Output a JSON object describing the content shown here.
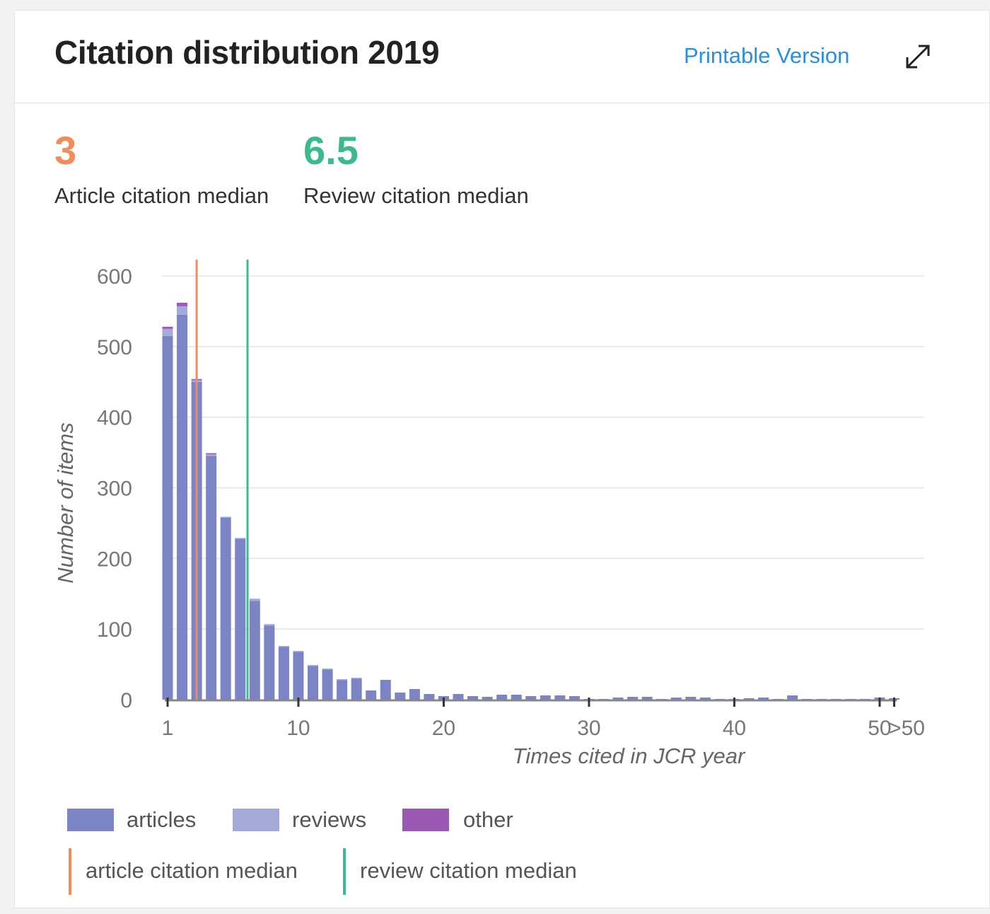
{
  "header": {
    "title": "Citation distribution 2019",
    "printable_label": "Printable Version"
  },
  "stats": [
    {
      "value": "3",
      "label": "Article citation median",
      "color": "#f28c5a"
    },
    {
      "value": "6.5",
      "label": "Review citation median",
      "color": "#3cba8c"
    }
  ],
  "legend": {
    "articles": "articles",
    "reviews": "reviews",
    "other": "other",
    "article_median": "article citation median",
    "review_median": "review citation median"
  },
  "colors": {
    "articles": "#7b84c4",
    "reviews": "#a4abd9",
    "other": "#9b59b6",
    "article_median": "#f28c5a",
    "review_median": "#3cba8c"
  },
  "chart_data": {
    "type": "bar",
    "title": "",
    "xlabel": "Times cited in JCR year",
    "ylabel": "Number of items",
    "ylim": [
      0,
      600
    ],
    "yticks": [
      0,
      100,
      200,
      300,
      400,
      500,
      600
    ],
    "xticks": [
      {
        "x": 1,
        "label": "1"
      },
      {
        "x": 10,
        "label": "10"
      },
      {
        "x": 20,
        "label": "20"
      },
      {
        "x": 30,
        "label": "30"
      },
      {
        "x": 40,
        "label": "40"
      },
      {
        "x": 50,
        "label": "50"
      },
      {
        "x": 51,
        "label": ">50"
      }
    ],
    "grid": true,
    "categories": [
      "1",
      "2",
      "3",
      "4",
      "5",
      "6",
      "7",
      "8",
      "9",
      "10",
      "11",
      "12",
      "13",
      "14",
      "15",
      "16",
      "17",
      "18",
      "19",
      "20",
      "21",
      "22",
      "23",
      "24",
      "25",
      "26",
      "27",
      "28",
      "29",
      "30",
      "31",
      "32",
      "33",
      "34",
      "35",
      "36",
      "37",
      "38",
      "39",
      "40",
      "41",
      "42",
      "43",
      "44",
      "45",
      "46",
      "47",
      "48",
      "49",
      "50",
      ">50"
    ],
    "series": [
      {
        "name": "articles",
        "values": [
          515,
          545,
          450,
          345,
          258,
          228,
          140,
          105,
          75,
          68,
          48,
          43,
          28,
          30,
          13,
          28,
          10,
          15,
          8,
          5,
          8,
          5,
          4,
          7,
          7,
          5,
          6,
          6,
          5,
          1,
          1,
          3,
          4,
          4,
          1,
          3,
          4,
          3,
          1,
          1,
          2,
          3,
          1,
          6,
          1,
          1,
          1,
          1,
          1,
          3,
          2
        ]
      },
      {
        "name": "reviews",
        "values": [
          10,
          12,
          3,
          3,
          1,
          1,
          3,
          2,
          1,
          1,
          1,
          1,
          1,
          1,
          0,
          0,
          0,
          0,
          0,
          0,
          0,
          0,
          0,
          0,
          0,
          0,
          0,
          0,
          0,
          0,
          0,
          0,
          0,
          0,
          0,
          0,
          0,
          0,
          0,
          0,
          0,
          0,
          0,
          0,
          0,
          0,
          0,
          0,
          0,
          0,
          0
        ]
      },
      {
        "name": "other",
        "values": [
          3,
          5,
          1,
          1,
          0,
          0,
          0,
          0,
          0,
          0,
          0,
          0,
          0,
          0,
          0,
          0,
          0,
          0,
          0,
          0,
          0,
          0,
          0,
          0,
          0,
          0,
          0,
          0,
          0,
          0,
          0,
          0,
          0,
          0,
          0,
          0,
          0,
          0,
          0,
          0,
          0,
          0,
          0,
          0,
          0,
          0,
          0,
          0,
          0,
          0,
          0
        ]
      }
    ],
    "article_median": 3,
    "review_median": 6.5,
    "legend_position": "bottom"
  }
}
